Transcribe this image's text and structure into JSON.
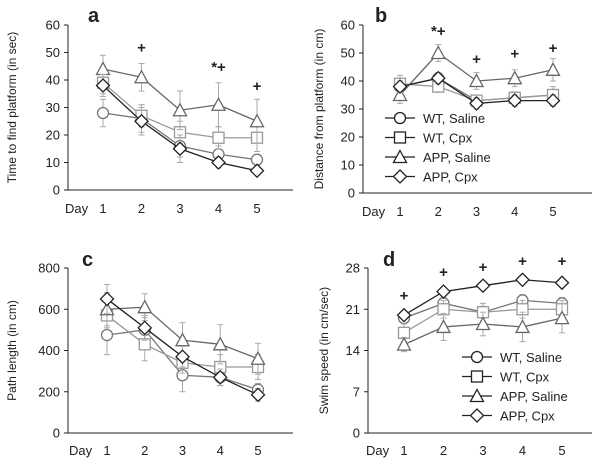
{
  "chart_data": [
    {
      "type": "line",
      "panel": "a",
      "ylabel": "Time to find platform (in sec)",
      "xlabel": "Day",
      "categories": [
        "1",
        "2",
        "3",
        "4",
        "5"
      ],
      "ylim": [
        0,
        60
      ],
      "yticks": [
        0,
        10,
        20,
        30,
        40,
        50,
        60
      ],
      "series": [
        {
          "name": "WT, Saline",
          "marker": "circle",
          "values": [
            28,
            26,
            16,
            13,
            11
          ],
          "errors": [
            5,
            5,
            4,
            3,
            2
          ]
        },
        {
          "name": "WT, Cpx",
          "marker": "square",
          "values": [
            39,
            27,
            21,
            19,
            19
          ],
          "errors": [
            4,
            4,
            4,
            4,
            5
          ]
        },
        {
          "name": "APP, Saline",
          "marker": "triangle",
          "values": [
            44,
            41,
            29,
            31,
            25
          ],
          "errors": [
            5,
            5,
            7,
            8,
            8
          ]
        },
        {
          "name": "APP, Cpx",
          "marker": "diamond",
          "values": [
            38,
            25,
            15,
            10,
            7
          ],
          "errors": [
            4,
            5,
            5,
            2,
            1
          ]
        }
      ],
      "annotations": [
        {
          "day": "2",
          "y": 50,
          "text": "+"
        },
        {
          "day": "4",
          "y": 43,
          "text": "*+"
        },
        {
          "day": "5",
          "y": 36,
          "text": "+"
        }
      ],
      "legend": "none"
    },
    {
      "type": "line",
      "panel": "b",
      "ylabel": "Distance from platform (in cm)",
      "xlabel": "Day",
      "categories": [
        "1",
        "2",
        "3",
        "4",
        "5"
      ],
      "ylim": [
        0,
        60
      ],
      "yticks": [
        0,
        10,
        20,
        30,
        40,
        50,
        60
      ],
      "series": [
        {
          "name": "WT, Saline",
          "marker": "circle",
          "values": [
            38,
            41,
            33,
            34,
            35
          ],
          "errors": [
            3,
            2,
            2,
            2,
            2
          ]
        },
        {
          "name": "WT, Cpx",
          "marker": "square",
          "values": [
            39,
            38,
            33,
            34,
            35
          ],
          "errors": [
            3,
            2,
            2,
            2,
            3
          ]
        },
        {
          "name": "APP, Saline",
          "marker": "triangle",
          "values": [
            35,
            50,
            40,
            41,
            44
          ],
          "errors": [
            3,
            3,
            3,
            3,
            4
          ]
        },
        {
          "name": "APP, Cpx",
          "marker": "diamond",
          "values": [
            38,
            41,
            32,
            33,
            33
          ],
          "errors": [
            2,
            2,
            2,
            2,
            2
          ]
        }
      ],
      "annotations": [
        {
          "day": "2",
          "y": 56,
          "text": "*+"
        },
        {
          "day": "3",
          "y": 46,
          "text": "+"
        },
        {
          "day": "4",
          "y": 48,
          "text": "+"
        },
        {
          "day": "5",
          "y": 50,
          "text": "+"
        }
      ],
      "legend": "lower-left"
    },
    {
      "type": "line",
      "panel": "c",
      "ylabel": "Path length (in cm)",
      "xlabel": "Day",
      "categories": [
        "1",
        "2",
        "3",
        "4",
        "5"
      ],
      "ylim": [
        0,
        800
      ],
      "yticks": [
        0,
        200,
        400,
        600,
        800
      ],
      "series": [
        {
          "name": "WT, Saline",
          "marker": "circle",
          "values": [
            475,
            500,
            280,
            270,
            210
          ],
          "errors": [
            95,
            60,
            80,
            40,
            30
          ]
        },
        {
          "name": "WT, Cpx",
          "marker": "square",
          "values": [
            570,
            430,
            340,
            320,
            320
          ],
          "errors": [
            60,
            80,
            50,
            60,
            60
          ]
        },
        {
          "name": "APP, Saline",
          "marker": "triangle",
          "values": [
            600,
            610,
            450,
            430,
            360
          ],
          "errors": [
            80,
            65,
            85,
            95,
            75
          ]
        },
        {
          "name": "APP, Cpx",
          "marker": "diamond",
          "values": [
            650,
            510,
            370,
            270,
            185
          ],
          "errors": [
            70,
            60,
            50,
            40,
            30
          ]
        }
      ],
      "annotations": [],
      "legend": "none"
    },
    {
      "type": "line",
      "panel": "d",
      "ylabel": "Swim speed (in cm/sec)",
      "xlabel": "Day",
      "categories": [
        "1",
        "2",
        "3",
        "4",
        "5"
      ],
      "ylim": [
        0,
        28
      ],
      "yticks": [
        0,
        7,
        14,
        21,
        28
      ],
      "series": [
        {
          "name": "WT, Saline",
          "marker": "circle",
          "values": [
            19.5,
            22,
            20.5,
            22.5,
            22
          ],
          "errors": [
            1,
            1,
            1,
            1,
            1
          ]
        },
        {
          "name": "WT, Cpx",
          "marker": "square",
          "values": [
            17,
            21,
            20.5,
            21,
            21
          ],
          "errors": [
            1.5,
            1.5,
            1.5,
            1.5,
            1.5
          ]
        },
        {
          "name": "APP, Saline",
          "marker": "triangle",
          "values": [
            15,
            18,
            18.5,
            18,
            19.5
          ],
          "errors": [
            1.2,
            2.3,
            2,
            2.5,
            2.5
          ]
        },
        {
          "name": "APP, Cpx",
          "marker": "diamond",
          "values": [
            20,
            24,
            25,
            26,
            25.5
          ],
          "errors": [
            0.6,
            0.6,
            0.7,
            0.7,
            0.7
          ]
        }
      ],
      "annotations": [
        {
          "day": "1",
          "y": 22.5,
          "text": "+"
        },
        {
          "day": "2",
          "y": 26.5,
          "text": "+"
        },
        {
          "day": "3",
          "y": 27.3,
          "text": "+"
        },
        {
          "day": "4",
          "y": 28.3,
          "text": "+"
        },
        {
          "day": "5",
          "y": 28.3,
          "text": "+"
        }
      ],
      "legend": "lower-right"
    }
  ],
  "panel_labels": [
    "a",
    "b",
    "c",
    "d"
  ],
  "legend_entries": [
    "WT, Saline",
    "WT, Cpx",
    "APP, Saline",
    "APP, Cpx"
  ],
  "colors": {
    "axis": "#222222",
    "wt_saline": "#777777",
    "wt_cpx": "#999999",
    "app_saline": "#666666",
    "app_cpx": "#222222",
    "marker_fill": "#ffffff"
  }
}
